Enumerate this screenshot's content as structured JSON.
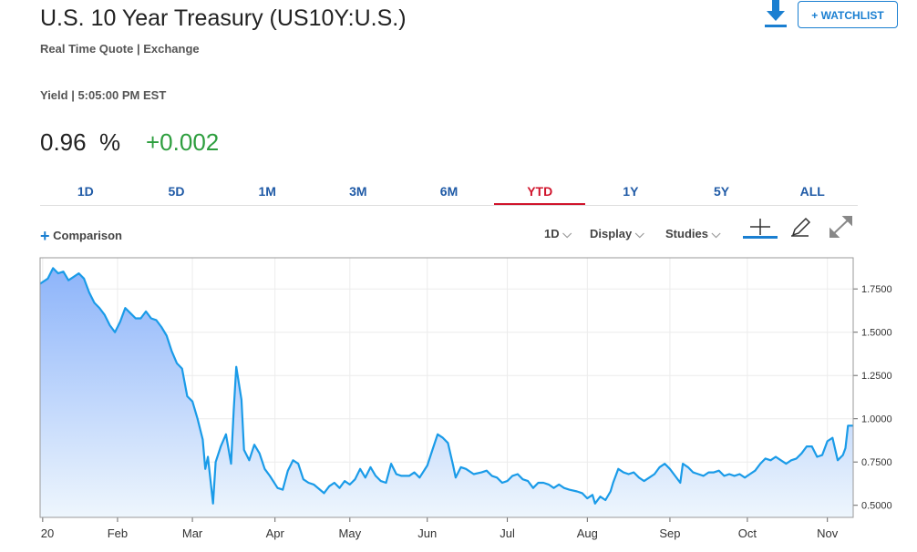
{
  "header": {
    "title": "U.S. 10 Year Treasury (US10Y:U.S.)",
    "subtitle": "Real Time Quote | Exchange",
    "watchlist": "+ WATCHLIST",
    "quote_time": "Yield | 5:05:00 PM EST",
    "last": "0.96",
    "unit": "%",
    "change": "+0.002"
  },
  "tabs": {
    "items": [
      "1D",
      "5D",
      "1M",
      "3M",
      "6M",
      "YTD",
      "1Y",
      "5Y",
      "ALL"
    ],
    "active": 5
  },
  "toolbar": {
    "comparison": "Comparison",
    "interval": "1D",
    "display": "Display",
    "studies": "Studies"
  },
  "chart_data": {
    "type": "line",
    "color": "#1a9be8",
    "fill_top": "#8db4fa",
    "fill_bottom": "#eef6fd",
    "grid": true,
    "x": [
      0,
      3,
      5,
      7,
      9,
      11,
      13,
      15,
      17,
      19,
      21,
      23,
      25,
      27,
      29,
      31,
      33,
      35,
      37,
      39,
      41,
      43,
      45,
      47,
      49,
      51,
      53,
      55,
      57,
      59,
      60,
      61,
      63,
      64,
      65,
      67,
      68,
      70,
      72,
      74,
      75,
      76,
      78,
      79,
      81,
      83,
      85,
      87,
      89,
      92,
      94,
      96,
      98,
      100,
      102,
      104,
      106,
      110,
      112,
      114,
      116,
      118,
      120,
      122,
      124,
      126,
      128,
      130,
      132,
      134,
      136,
      138,
      140,
      143,
      145,
      147,
      150,
      152,
      154,
      156,
      158,
      160,
      161,
      163,
      165,
      168,
      171,
      173,
      175,
      177,
      179,
      181,
      183,
      185,
      187,
      189,
      191,
      193,
      195,
      197,
      199,
      201,
      203,
      205,
      208,
      210,
      212,
      214,
      215,
      217,
      219,
      221,
      222,
      224,
      226,
      228,
      230,
      232,
      234,
      236,
      238,
      240,
      242,
      244,
      246,
      248,
      249,
      251,
      253,
      255,
      257,
      259,
      261,
      263,
      265,
      267,
      269,
      271,
      273,
      275,
      277,
      279,
      281,
      283,
      285,
      287,
      289,
      291,
      293,
      295,
      297,
      299,
      301,
      303,
      305,
      307,
      309,
      311,
      312,
      313,
      315
    ],
    "values": [
      1.78,
      1.81,
      1.87,
      1.84,
      1.85,
      1.8,
      1.82,
      1.84,
      1.81,
      1.73,
      1.67,
      1.64,
      1.6,
      1.54,
      1.5,
      1.56,
      1.64,
      1.61,
      1.58,
      1.58,
      1.62,
      1.58,
      1.57,
      1.53,
      1.48,
      1.39,
      1.32,
      1.29,
      1.13,
      1.1,
      1.05,
      1.0,
      0.88,
      0.71,
      0.78,
      0.51,
      0.75,
      0.84,
      0.91,
      0.74,
      1.05,
      1.3,
      1.11,
      0.82,
      0.76,
      0.85,
      0.8,
      0.71,
      0.67,
      0.6,
      0.59,
      0.7,
      0.76,
      0.74,
      0.65,
      0.63,
      0.62,
      0.57,
      0.61,
      0.63,
      0.6,
      0.64,
      0.62,
      0.65,
      0.71,
      0.66,
      0.72,
      0.67,
      0.64,
      0.63,
      0.74,
      0.68,
      0.67,
      0.67,
      0.69,
      0.66,
      0.73,
      0.82,
      0.91,
      0.89,
      0.86,
      0.73,
      0.66,
      0.72,
      0.71,
      0.68,
      0.69,
      0.7,
      0.67,
      0.66,
      0.63,
      0.64,
      0.67,
      0.68,
      0.65,
      0.64,
      0.6,
      0.63,
      0.63,
      0.62,
      0.6,
      0.62,
      0.6,
      0.59,
      0.58,
      0.57,
      0.54,
      0.56,
      0.51,
      0.55,
      0.53,
      0.58,
      0.63,
      0.71,
      0.69,
      0.68,
      0.69,
      0.66,
      0.64,
      0.66,
      0.68,
      0.72,
      0.74,
      0.71,
      0.67,
      0.63,
      0.74,
      0.72,
      0.69,
      0.68,
      0.67,
      0.69,
      0.69,
      0.7,
      0.67,
      0.68,
      0.67,
      0.68,
      0.66,
      0.68,
      0.7,
      0.74,
      0.77,
      0.76,
      0.78,
      0.76,
      0.74,
      0.76,
      0.77,
      0.8,
      0.84,
      0.84,
      0.78,
      0.79,
      0.87,
      0.89,
      0.76,
      0.79,
      0.83,
      0.96,
      0.96
    ],
    "xlim": [
      0,
      315
    ],
    "xticks": [
      {
        "value": 1,
        "label": "20"
      },
      {
        "value": 30,
        "label": "Feb"
      },
      {
        "value": 59,
        "label": "Mar"
      },
      {
        "value": 91,
        "label": "Apr"
      },
      {
        "value": 120,
        "label": "May"
      },
      {
        "value": 150,
        "label": "Jun"
      },
      {
        "value": 181,
        "label": "Jul"
      },
      {
        "value": 212,
        "label": "Aug"
      },
      {
        "value": 244,
        "label": "Sep"
      },
      {
        "value": 274,
        "label": "Oct"
      },
      {
        "value": 305,
        "label": "Nov"
      }
    ],
    "ylim": [
      0.43,
      1.93
    ],
    "yticks": [
      {
        "value": 0.5,
        "label": "0.5000"
      },
      {
        "value": 0.75,
        "label": "0.7500"
      },
      {
        "value": 1,
        "label": "1.0000"
      },
      {
        "value": 1.25,
        "label": "1.2500"
      },
      {
        "value": 1.5,
        "label": "1.5000"
      },
      {
        "value": 1.75,
        "label": "1.7500"
      }
    ]
  }
}
